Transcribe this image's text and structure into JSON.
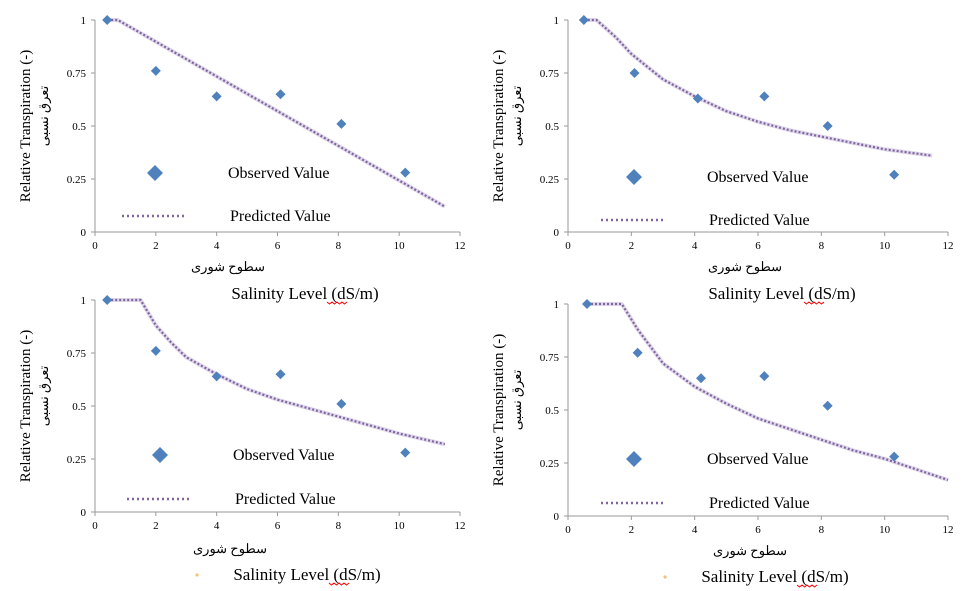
{
  "colors": {
    "observed": "#4f81bd",
    "predicted": "#8064a2",
    "axis": "#9a9a9a",
    "underline": "#ff0000",
    "bullet": "#f4c27a"
  },
  "chart_data": [
    {
      "type": "scatter",
      "panel": "top-left",
      "xlim": [
        0,
        12
      ],
      "ylim": [
        0,
        1
      ],
      "xticks": [
        "0",
        "2",
        "4",
        "6",
        "8",
        "10",
        "12"
      ],
      "yticks": [
        "0",
        "0.25",
        "0.5",
        "0.75",
        "1"
      ],
      "ylabel": "Relative Transpiration (-)",
      "ylabel_fa": "تعرق نسبی",
      "xlabel_fa": "سطوح شوری",
      "xlabel": "Salinity Level (dS/m)",
      "xlabel_bullet": false,
      "legend": {
        "observed": "Observed Value",
        "predicted": "Predicted Value"
      },
      "series": [
        {
          "name": "Observed Value",
          "kind": "markers",
          "x": [
            0.4,
            2.0,
            4.0,
            6.1,
            8.1,
            10.2
          ],
          "y": [
            1.0,
            0.76,
            0.64,
            0.65,
            0.51,
            0.28
          ]
        },
        {
          "name": "Predicted Value",
          "kind": "dotted-line",
          "x": [
            0.4,
            0.75,
            11.5
          ],
          "y": [
            1.0,
            1.0,
            0.12
          ]
        }
      ]
    },
    {
      "type": "scatter",
      "panel": "top-right",
      "xlim": [
        0,
        12
      ],
      "ylim": [
        0,
        1
      ],
      "xticks": [
        "0",
        "2",
        "4",
        "6",
        "8",
        "10",
        "12"
      ],
      "yticks": [
        "0",
        "0.25",
        "0.5",
        "0.75",
        "1"
      ],
      "ylabel": "Relative Transpiration (-)",
      "ylabel_fa": "تعرق نسبی",
      "xlabel_fa": "سطوح شوری",
      "xlabel": "Salinity Level (dS/m)",
      "xlabel_bullet": false,
      "legend": {
        "observed": "Observed Value",
        "predicted": "Predicted Value"
      },
      "series": [
        {
          "name": "Observed Value",
          "kind": "markers",
          "x": [
            0.5,
            2.1,
            4.1,
            6.2,
            8.2,
            10.3
          ],
          "y": [
            1.0,
            0.75,
            0.63,
            0.64,
            0.5,
            0.27
          ]
        },
        {
          "name": "Predicted Value",
          "kind": "dotted-line",
          "x": [
            0.5,
            0.9,
            1.5,
            2.0,
            3.0,
            4.0,
            5.0,
            6.0,
            7.0,
            8.0,
            9.0,
            10.0,
            11.5
          ],
          "y": [
            1.0,
            1.0,
            0.92,
            0.84,
            0.72,
            0.64,
            0.57,
            0.52,
            0.48,
            0.45,
            0.42,
            0.39,
            0.36
          ]
        }
      ]
    },
    {
      "type": "scatter",
      "panel": "bottom-left",
      "xlim": [
        0,
        12
      ],
      "ylim": [
        0,
        1
      ],
      "xticks": [
        "0",
        "2",
        "4",
        "6",
        "8",
        "10",
        "12"
      ],
      "yticks": [
        "0",
        "0.25",
        "0.5",
        "0.75",
        "1"
      ],
      "ylabel": "Relative Transpiration (-)",
      "ylabel_fa": "تعرق نسبی",
      "xlabel_fa": "سطوح شوری",
      "xlabel": "Salinity Level (dS/m)",
      "xlabel_bullet": true,
      "legend": {
        "observed": "Observed Value",
        "predicted": "Predicted Value"
      },
      "series": [
        {
          "name": "Observed Value",
          "kind": "markers",
          "x": [
            0.4,
            2.0,
            4.0,
            6.1,
            8.1,
            10.2
          ],
          "y": [
            1.0,
            0.76,
            0.64,
            0.65,
            0.51,
            0.28
          ]
        },
        {
          "name": "Predicted Value",
          "kind": "dotted-line",
          "x": [
            0.4,
            1.5,
            2.0,
            2.5,
            3.0,
            4.0,
            5.0,
            6.0,
            7.0,
            8.0,
            9.0,
            10.0,
            11.5
          ],
          "y": [
            1.0,
            1.0,
            0.88,
            0.8,
            0.73,
            0.65,
            0.58,
            0.53,
            0.49,
            0.45,
            0.41,
            0.37,
            0.32
          ]
        }
      ]
    },
    {
      "type": "scatter",
      "panel": "bottom-right",
      "xlim": [
        0,
        12
      ],
      "ylim": [
        0,
        1
      ],
      "xticks": [
        "0",
        "2",
        "4",
        "6",
        "8",
        "10",
        "12"
      ],
      "yticks": [
        "0",
        "0.25",
        "0.5",
        "0.75",
        "1"
      ],
      "ylabel": "Relative Transpiration (-)",
      "ylabel_fa": "تعرق نسبی",
      "xlabel_fa": "سطوح شوری",
      "xlabel": "Salinity Level (dS/m)",
      "xlabel_bullet": true,
      "legend": {
        "observed": "Observed Value",
        "predicted": "Predicted Value"
      },
      "series": [
        {
          "name": "Observed Value",
          "kind": "markers",
          "x": [
            0.6,
            2.2,
            4.2,
            6.2,
            8.2,
            10.3
          ],
          "y": [
            1.0,
            0.77,
            0.65,
            0.66,
            0.52,
            0.28
          ]
        },
        {
          "name": "Predicted Value",
          "kind": "dotted-line",
          "x": [
            0.6,
            1.7,
            2.2,
            3.0,
            4.0,
            5.0,
            6.0,
            7.0,
            8.0,
            9.0,
            10.0,
            11.0,
            12.0
          ],
          "y": [
            1.0,
            1.0,
            0.88,
            0.72,
            0.61,
            0.53,
            0.46,
            0.41,
            0.36,
            0.31,
            0.27,
            0.22,
            0.17
          ]
        }
      ]
    }
  ]
}
